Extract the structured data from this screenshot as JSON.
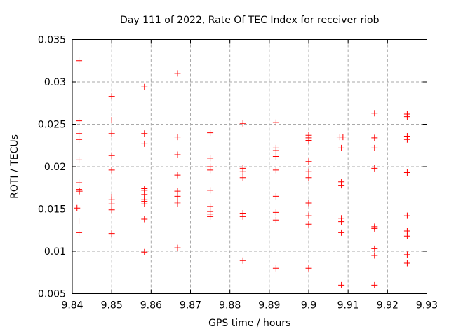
{
  "chart_data": {
    "type": "scatter",
    "title": "Day 111 of 2022, Rate Of TEC Index for receiver riob",
    "xlabel": "GPS time / hours",
    "ylabel": "ROTI / TECUs",
    "xlim": [
      9.84,
      9.93
    ],
    "ylim": [
      0.005,
      0.035
    ],
    "xticks": [
      9.84,
      9.85,
      9.86,
      9.87,
      9.88,
      9.89,
      9.9,
      9.91,
      9.92,
      9.93
    ],
    "xtick_labels": [
      "9.84",
      "9.85",
      "9.86",
      "9.87",
      "9.88",
      "9.89",
      "9.9",
      "9.91",
      "9.92",
      "9.93"
    ],
    "yticks": [
      0.005,
      0.01,
      0.015,
      0.02,
      0.025,
      0.03,
      0.035
    ],
    "ytick_labels": [
      "0.005",
      "0.01",
      "0.015",
      "0.02",
      "0.025",
      "0.03",
      "0.035"
    ],
    "grid": true,
    "legend": "none",
    "marker": {
      "shape": "plus",
      "color": "#ff0000",
      "size": 9
    },
    "colors": {
      "grid": "#aaaaaa",
      "axis": "#000000",
      "text": "#000000",
      "background": "#ffffff"
    },
    "series": [
      {
        "name": "ROTI",
        "points": [
          [
            9.8412,
            0.0151
          ],
          [
            9.8417,
            0.0325
          ],
          [
            9.8417,
            0.0254
          ],
          [
            9.8417,
            0.0239
          ],
          [
            9.8417,
            0.0232
          ],
          [
            9.8417,
            0.0208
          ],
          [
            9.8417,
            0.0181
          ],
          [
            9.8417,
            0.0173
          ],
          [
            9.8418,
            0.0171
          ],
          [
            9.8417,
            0.0136
          ],
          [
            9.8417,
            0.0122
          ],
          [
            9.85,
            0.0283
          ],
          [
            9.85,
            0.0255
          ],
          [
            9.85,
            0.0239
          ],
          [
            9.85,
            0.0213
          ],
          [
            9.85,
            0.0196
          ],
          [
            9.85,
            0.0164
          ],
          [
            9.85,
            0.0161
          ],
          [
            9.85,
            0.0156
          ],
          [
            9.85,
            0.0149
          ],
          [
            9.85,
            0.0121
          ],
          [
            9.8583,
            0.0294
          ],
          [
            9.8583,
            0.0239
          ],
          [
            9.8583,
            0.0227
          ],
          [
            9.8583,
            0.0174
          ],
          [
            9.8583,
            0.0172
          ],
          [
            9.8583,
            0.0167
          ],
          [
            9.8583,
            0.0164
          ],
          [
            9.8583,
            0.0161
          ],
          [
            9.8583,
            0.0159
          ],
          [
            9.8583,
            0.0156
          ],
          [
            9.8583,
            0.0138
          ],
          [
            9.8583,
            0.0099
          ],
          [
            9.8667,
            0.031
          ],
          [
            9.8667,
            0.0235
          ],
          [
            9.8667,
            0.0214
          ],
          [
            9.8667,
            0.019
          ],
          [
            9.8667,
            0.0171
          ],
          [
            9.8667,
            0.0165
          ],
          [
            9.8667,
            0.0158
          ],
          [
            9.8667,
            0.0156
          ],
          [
            9.8667,
            0.0104
          ],
          [
            9.875,
            0.024
          ],
          [
            9.875,
            0.021
          ],
          [
            9.875,
            0.02
          ],
          [
            9.875,
            0.0196
          ],
          [
            9.875,
            0.0172
          ],
          [
            9.875,
            0.0153
          ],
          [
            9.875,
            0.015
          ],
          [
            9.875,
            0.0147
          ],
          [
            9.875,
            0.0144
          ],
          [
            9.875,
            0.0141
          ],
          [
            9.8833,
            0.0251
          ],
          [
            9.8833,
            0.0198
          ],
          [
            9.8833,
            0.0194
          ],
          [
            9.8833,
            0.0187
          ],
          [
            9.8833,
            0.0145
          ],
          [
            9.8833,
            0.0141
          ],
          [
            9.8833,
            0.0089
          ],
          [
            9.8917,
            0.0252
          ],
          [
            9.8917,
            0.0222
          ],
          [
            9.8917,
            0.0219
          ],
          [
            9.8917,
            0.0212
          ],
          [
            9.8917,
            0.0196
          ],
          [
            9.8917,
            0.0165
          ],
          [
            9.8917,
            0.0146
          ],
          [
            9.8917,
            0.0137
          ],
          [
            9.8917,
            0.008
          ],
          [
            9.9,
            0.0237
          ],
          [
            9.9,
            0.0234
          ],
          [
            9.9,
            0.0231
          ],
          [
            9.9,
            0.0206
          ],
          [
            9.9,
            0.0194
          ],
          [
            9.9,
            0.0187
          ],
          [
            9.9,
            0.0157
          ],
          [
            9.9,
            0.0142
          ],
          [
            9.9,
            0.0132
          ],
          [
            9.9,
            0.008
          ],
          [
            9.9079,
            0.0235
          ],
          [
            9.9087,
            0.0235
          ],
          [
            9.9083,
            0.0222
          ],
          [
            9.9083,
            0.0182
          ],
          [
            9.9083,
            0.0178
          ],
          [
            9.9083,
            0.0139
          ],
          [
            9.9083,
            0.0135
          ],
          [
            9.9083,
            0.0122
          ],
          [
            9.9083,
            0.006
          ],
          [
            9.9167,
            0.0263
          ],
          [
            9.9167,
            0.0234
          ],
          [
            9.9167,
            0.0222
          ],
          [
            9.9167,
            0.0198
          ],
          [
            9.9167,
            0.0129
          ],
          [
            9.9167,
            0.0127
          ],
          [
            9.9167,
            0.0103
          ],
          [
            9.9167,
            0.0095
          ],
          [
            9.9167,
            0.006
          ],
          [
            9.925,
            0.0262
          ],
          [
            9.925,
            0.0259
          ],
          [
            9.925,
            0.0236
          ],
          [
            9.925,
            0.0232
          ],
          [
            9.925,
            0.0193
          ],
          [
            9.925,
            0.0142
          ],
          [
            9.925,
            0.0124
          ],
          [
            9.925,
            0.0118
          ],
          [
            9.925,
            0.0096
          ],
          [
            9.925,
            0.0086
          ]
        ]
      }
    ]
  }
}
